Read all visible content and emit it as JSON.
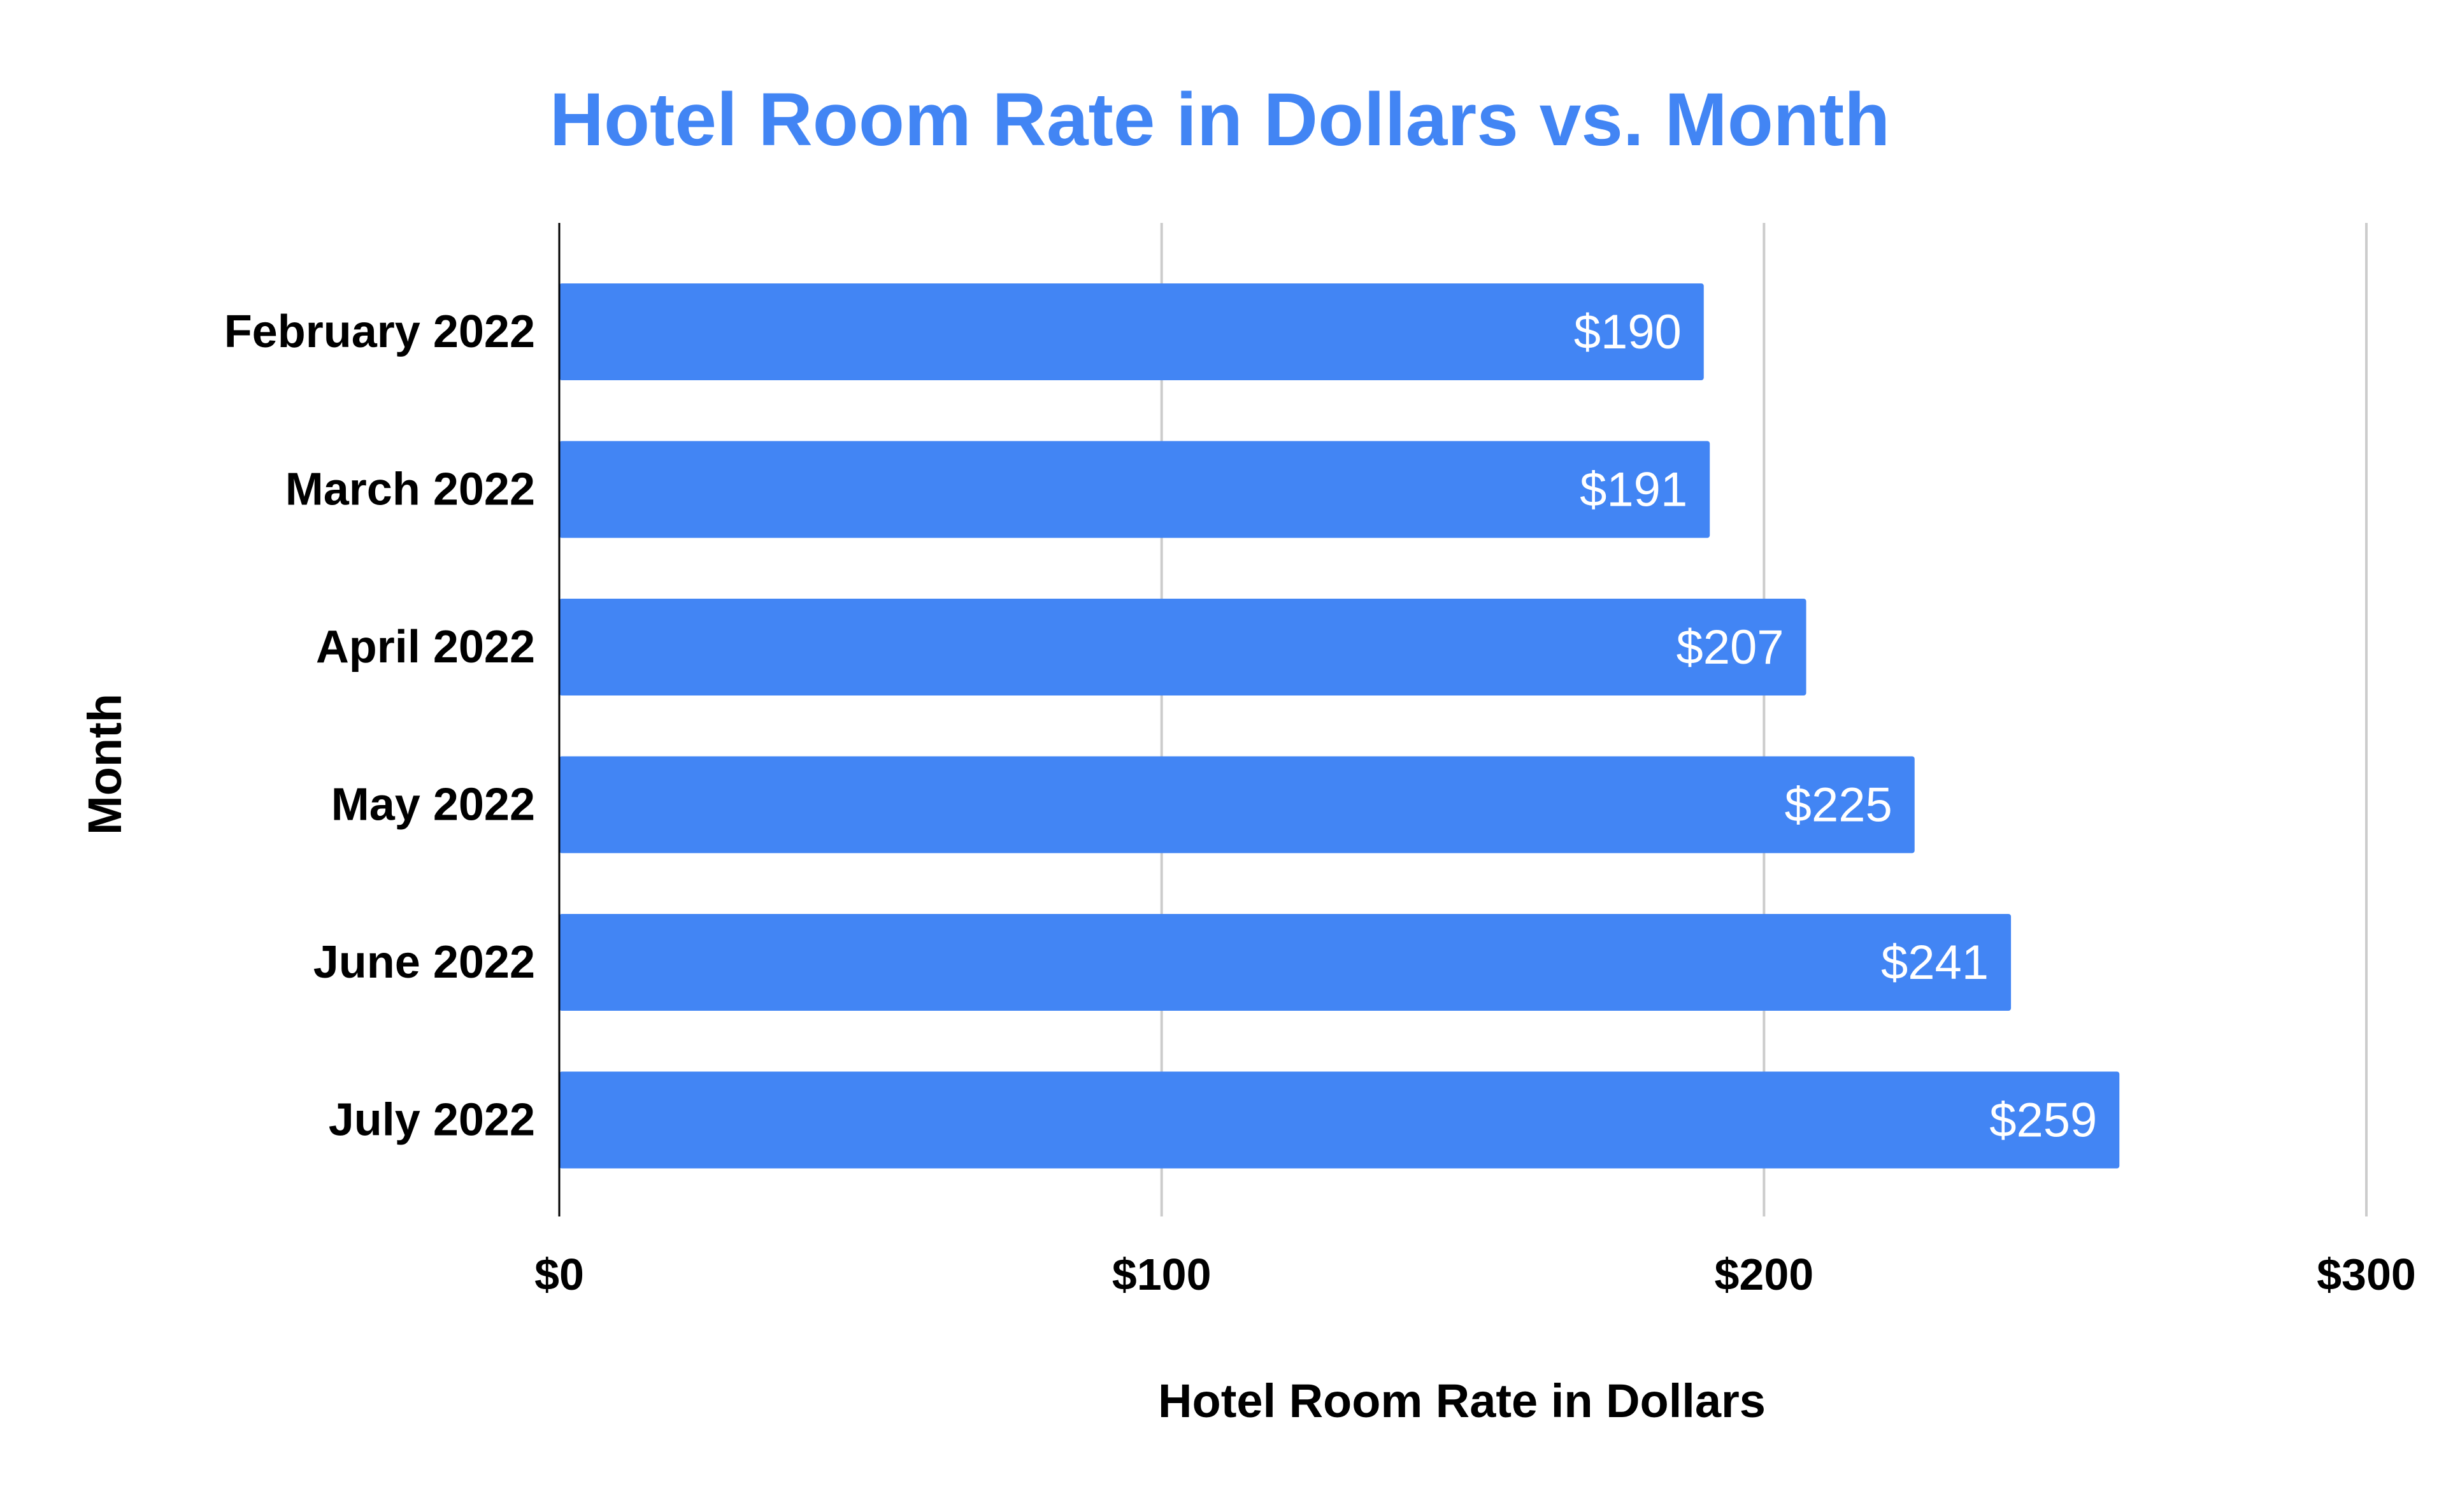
{
  "chart_data": {
    "type": "bar",
    "orientation": "horizontal",
    "title": "Hotel Room Rate in Dollars vs. Month",
    "xlabel": "Hotel Room Rate in Dollars",
    "ylabel": "Month",
    "categories": [
      "February 2022",
      "March 2022",
      "April 2022",
      "May 2022",
      "June 2022",
      "July 2022"
    ],
    "values": [
      190,
      191,
      207,
      225,
      241,
      259
    ],
    "data_labels": [
      "$190",
      "$191",
      "$207",
      "$225",
      "$241",
      "$259"
    ],
    "xlim": [
      0,
      300
    ],
    "x_ticks": [
      0,
      100,
      200,
      300
    ],
    "x_tick_labels": [
      "$0",
      "$100",
      "$200",
      "$300"
    ],
    "grid": "vertical",
    "legend": "none",
    "colors": {
      "bar": "#4285f4",
      "title": "#4285f4",
      "gridline": "#cccccc",
      "axis": "#000000",
      "data_label": "#ffffff"
    }
  }
}
